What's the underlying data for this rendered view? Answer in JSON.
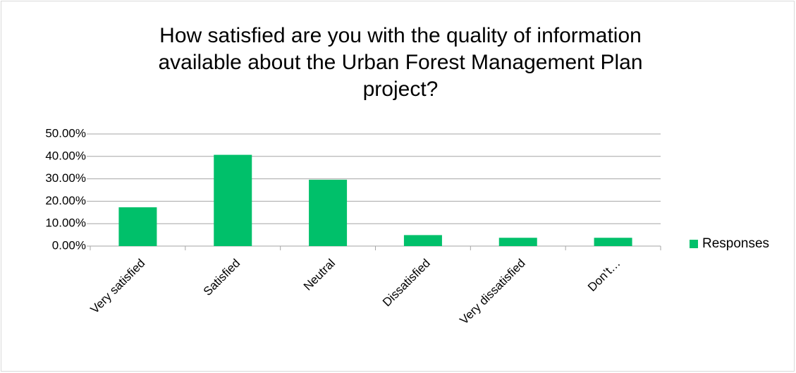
{
  "chart_data": {
    "type": "bar",
    "title": [
      "How satisfied are you with the quality of information",
      "available about the Urban Forest Management Plan",
      "project?"
    ],
    "categories": [
      "Very satisfied",
      "Satisfied",
      "Neutral",
      "Dissatisfied",
      "Very dissatisfied",
      "Don’t…"
    ],
    "series": [
      {
        "name": "Responses",
        "color": "#00c06a",
        "values": [
          17.3,
          40.7,
          29.6,
          4.9,
          3.7,
          3.7
        ]
      }
    ],
    "ylim": [
      0,
      50
    ],
    "yticks": [
      {
        "value": 0,
        "label": "0.00%"
      },
      {
        "value": 10,
        "label": "10.00%"
      },
      {
        "value": 20,
        "label": "20.00%"
      },
      {
        "value": 30,
        "label": "30.00%"
      },
      {
        "value": 40,
        "label": "40.00%"
      },
      {
        "value": 50,
        "label": "50.00%"
      }
    ],
    "grid": true,
    "legend": "right"
  }
}
